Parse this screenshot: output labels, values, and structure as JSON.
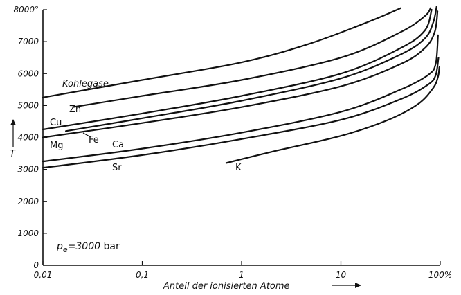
{
  "chart_data": {
    "type": "line",
    "xscale": "log",
    "xlim": [
      0.01,
      100
    ],
    "ylim": [
      0,
      8000
    ],
    "grid": false,
    "x_ticks": [
      {
        "value": 0.01,
        "label": "0,01"
      },
      {
        "value": 0.1,
        "label": "0,1"
      },
      {
        "value": 1,
        "label": "1"
      },
      {
        "value": 10,
        "label": "10"
      },
      {
        "value": 100,
        "label": "100%"
      }
    ],
    "y_ticks": [
      {
        "value": 0,
        "label": "0"
      },
      {
        "value": 1000,
        "label": "1000"
      },
      {
        "value": 2000,
        "label": "2000"
      },
      {
        "value": 3000,
        "label": "3000"
      },
      {
        "value": 4000,
        "label": "4000"
      },
      {
        "value": 5000,
        "label": "5000"
      },
      {
        "value": 6000,
        "label": "6000"
      },
      {
        "value": 7000,
        "label": "7000"
      },
      {
        "value": 8000,
        "label": "8000°"
      }
    ],
    "xlabel": "Anteil der ionisierten Atome",
    "ylabel": "T",
    "annotation": "p_e=3000 bar",
    "series": [
      {
        "name": "Kohlegase",
        "x": [
          0.01,
          0.1,
          1,
          5,
          20,
          40
        ],
        "y": [
          5250,
          5800,
          6350,
          6950,
          7650,
          8050
        ]
      },
      {
        "name": "Zn",
        "x": [
          0.02,
          0.1,
          1,
          10,
          40,
          70,
          80
        ],
        "y": [
          4950,
          5300,
          5800,
          6500,
          7300,
          7800,
          8050
        ]
      },
      {
        "name": "Cu",
        "x": [
          0.01,
          0.1,
          1,
          10,
          40,
          70,
          82
        ],
        "y": [
          4250,
          4750,
          5300,
          6000,
          6800,
          7350,
          8000
        ]
      },
      {
        "name": "Fe",
        "x": [
          0.017,
          0.1,
          1,
          10,
          40,
          70,
          85,
          92
        ],
        "y": [
          4200,
          4600,
          5150,
          5850,
          6600,
          7100,
          7600,
          8100
        ]
      },
      {
        "name": "Mg",
        "x": [
          0.01,
          0.1,
          1,
          10,
          40,
          70,
          88,
          94
        ],
        "y": [
          4000,
          4450,
          4950,
          5600,
          6300,
          6800,
          7300,
          7950
        ]
      },
      {
        "name": "Ca",
        "x": [
          0.01,
          0.1,
          1,
          10,
          40,
          75,
          90,
          95
        ],
        "y": [
          3250,
          3650,
          4150,
          4800,
          5500,
          5950,
          6300,
          7200
        ]
      },
      {
        "name": "Sr",
        "x": [
          0.01,
          0.1,
          1,
          10,
          40,
          75,
          90,
          96
        ],
        "y": [
          3050,
          3450,
          3950,
          4550,
          5200,
          5650,
          5950,
          6500
        ]
      },
      {
        "name": "K",
        "x": [
          0.7,
          2,
          10,
          30,
          60,
          85,
          95,
          98
        ],
        "y": [
          3200,
          3550,
          4050,
          4550,
          5050,
          5550,
          5900,
          6200
        ]
      }
    ]
  }
}
